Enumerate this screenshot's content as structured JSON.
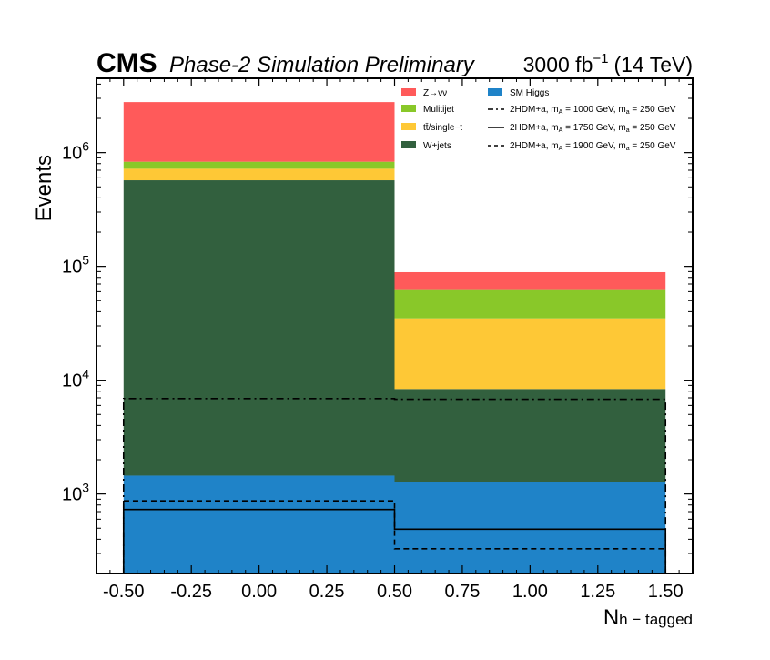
{
  "chart_data": {
    "type": "bar",
    "stacked": true,
    "log_y": true,
    "experiment": "CMS",
    "subtitle": "Phase-2 Simulation Preliminary",
    "lumi_prefix": "3000 fb",
    "lumi_sup": "−1",
    "lumi_suffix": "(14 TeV)",
    "xlabel_main": "N",
    "xlabel_sub": "h − tagged",
    "ylabel": "Events",
    "xlim": [
      -0.6,
      1.6
    ],
    "ylim": [
      200,
      4500000
    ],
    "bin_edges": [
      -0.5,
      0.5,
      1.5
    ],
    "x_ticks": [
      -0.5,
      -0.25,
      0.0,
      0.25,
      0.5,
      0.75,
      1.0,
      1.25,
      1.5
    ],
    "x_tick_labels": [
      "-0.50",
      "-0.25",
      "0.00",
      "0.25",
      "0.50",
      "0.75",
      "1.00",
      "1.25",
      "1.50"
    ],
    "y_ticks": [
      {
        "value": 1000,
        "base": "10",
        "exp": "3"
      },
      {
        "value": 10000,
        "base": "10",
        "exp": "4"
      },
      {
        "value": 100000,
        "base": "10",
        "exp": "5"
      },
      {
        "value": 1000000,
        "base": "10",
        "exp": "6"
      }
    ],
    "stack": [
      {
        "name": "SM Higgs",
        "color": "#1f83c8",
        "values": [
          1450,
          1270
        ]
      },
      {
        "name": "W+jets",
        "color": "#32603e",
        "values": [
          570000,
          7100
        ]
      },
      {
        "name": "tt̄/single−t",
        "color": "#fec836",
        "values": [
          150000,
          26600
        ]
      },
      {
        "name": "Mulitijet",
        "color": "#89c829",
        "values": [
          110000,
          27000
        ]
      },
      {
        "name": "Z→νν",
        "color": "#ff5a5a",
        "values": [
          1950000,
          27000
        ]
      }
    ],
    "signals": [
      {
        "name": "2HDM+a, m",
        "sub_a": "A",
        "mid": " = 1000 GeV, m",
        "sub_b": "a",
        "tail": " = 250 GeV",
        "dash": "8,4,2,4",
        "values": [
          6900,
          6800
        ]
      },
      {
        "name": "2HDM+a, m",
        "sub_a": "A",
        "mid": " = 1750 GeV, m",
        "sub_b": "a",
        "tail": " = 250 GeV",
        "dash": "",
        "values": [
          730,
          490
        ]
      },
      {
        "name": "2HDM+a, m",
        "sub_a": "A",
        "mid": " = 1900 GeV, m",
        "sub_b": "a",
        "tail": " = 250 GeV",
        "dash": "6,4",
        "values": [
          870,
          330
        ]
      }
    ],
    "legend_left": [
      {
        "label": "Z→νν",
        "color": "#ff5a5a"
      },
      {
        "label": "Mulitijet",
        "color": "#89c829"
      },
      {
        "label": "tt̄/single−t",
        "color": "#fec836"
      },
      {
        "label": "W+jets",
        "color": "#32603e"
      }
    ],
    "legend_right_patch": {
      "label": "SM Higgs",
      "color": "#1f83c8"
    },
    "legend_placement": "top-right",
    "grid": false
  }
}
